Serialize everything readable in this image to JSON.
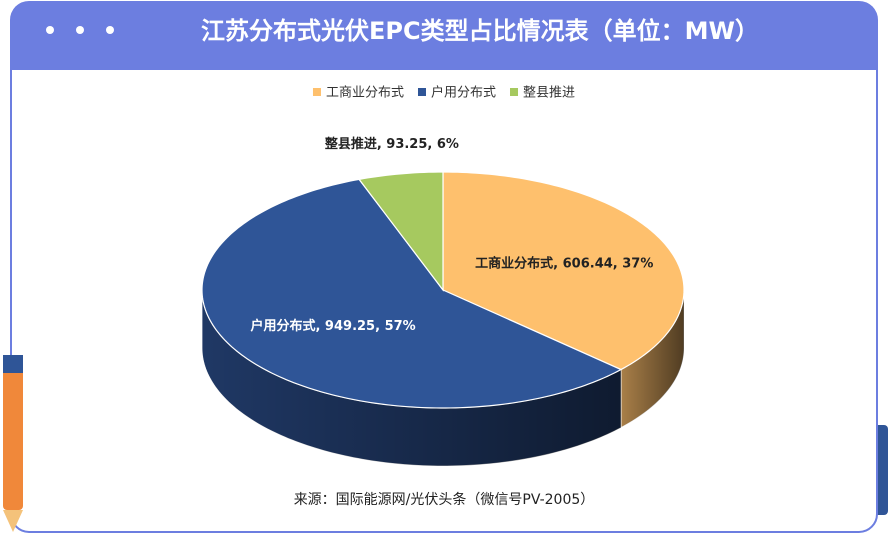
{
  "header": {
    "title": "江苏分布式光伏EPC类型占比情况表（单位：MW）"
  },
  "chart_data": {
    "type": "pie3d",
    "categories": [
      "工商业分布式",
      "户用分布式",
      "整县推进"
    ],
    "values": [
      606.44,
      949.25,
      93.25
    ],
    "value_labels": [
      "工商业分布式, 606.44, 37%",
      "户用分布式, 949.25, 57%",
      "整县推进, 93.25, 6%"
    ],
    "colors": [
      "#fec06d",
      "#2f5597",
      "#a6c95f"
    ],
    "legend": "top"
  },
  "footer": {
    "source": "来源：国际能源网/光伏头条（微信号PV-2005）"
  }
}
